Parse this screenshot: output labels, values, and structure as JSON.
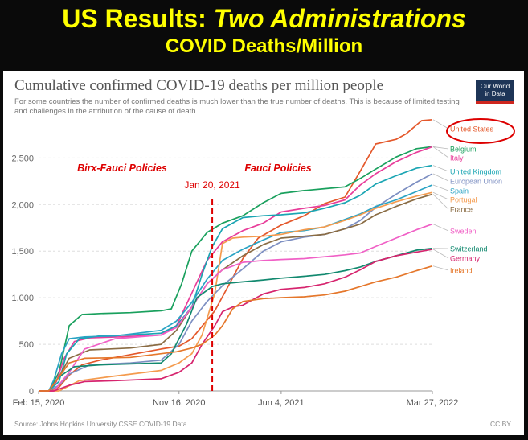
{
  "slide": {
    "title_prefix": "US Results: ",
    "title_emphasis": "Two Administrations",
    "subtitle": "COVID Deaths/Million"
  },
  "chart_header": {
    "title": "Cumulative confirmed COVID-19 deaths per million people",
    "subtitle": "For some countries the number of confirmed deaths is much lower than the true number of deaths. This is because of limited testing and challenges in the attribution of the cause of death.",
    "logo_line1": "Our World",
    "logo_line2": "in Data",
    "source": "Source: Johns Hopkins University CSSE COVID-19 Data",
    "license": "CC BY"
  },
  "annotations": {
    "left_policy": "Birx-Fauci Policies",
    "right_policy": "Fauci Policies",
    "divider_label": "Jan 20, 2021",
    "divider_color": "#dd0000"
  },
  "chart_data": {
    "type": "line",
    "x_tick_labels": [
      "Feb 15, 2020",
      "Nov 16, 2020",
      "Jun 4, 2021",
      "Mar 27, 2022"
    ],
    "x_ticks": [
      0,
      275,
      475,
      771
    ],
    "x_range": [
      0,
      771
    ],
    "ylim": [
      0,
      2900
    ],
    "y_ticks": [
      0,
      500,
      1000,
      1500,
      2000,
      2500
    ],
    "y_tick_labels": [
      "0",
      "500",
      "1,000",
      "1,500",
      "2,000",
      "2,500"
    ],
    "grid": "horizontal dashed",
    "divider_x": 340,
    "series": [
      {
        "name": "United States",
        "color": "#e4582b",
        "x": [
          0,
          20,
          40,
          60,
          85,
          120,
          180,
          240,
          275,
          300,
          330,
          345,
          370,
          400,
          430,
          475,
          520,
          560,
          600,
          630,
          660,
          700,
          720,
          750,
          771
        ],
        "values": [
          0,
          0,
          40,
          170,
          280,
          330,
          390,
          450,
          480,
          560,
          760,
          860,
          1110,
          1420,
          1640,
          1780,
          1880,
          2010,
          2080,
          2360,
          2650,
          2700,
          2760,
          2900,
          2910
        ]
      },
      {
        "name": "Belgium",
        "color": "#19a05d",
        "x": [
          0,
          20,
          40,
          60,
          85,
          120,
          180,
          240,
          260,
          280,
          300,
          330,
          360,
          400,
          440,
          475,
          520,
          560,
          600,
          630,
          660,
          700,
          740,
          771
        ],
        "values": [
          0,
          0,
          200,
          700,
          820,
          830,
          840,
          860,
          880,
          1150,
          1500,
          1700,
          1800,
          1880,
          2020,
          2120,
          2150,
          2170,
          2190,
          2280,
          2380,
          2510,
          2600,
          2620
        ]
      },
      {
        "name": "Italy",
        "color": "#e83d9a",
        "x": [
          0,
          20,
          35,
          50,
          70,
          100,
          160,
          240,
          270,
          300,
          330,
          360,
          400,
          440,
          475,
          520,
          560,
          600,
          630,
          660,
          700,
          740,
          771
        ],
        "values": [
          0,
          0,
          100,
          350,
          530,
          570,
          580,
          600,
          700,
          1050,
          1400,
          1600,
          1720,
          1800,
          1920,
          1960,
          1990,
          2050,
          2210,
          2330,
          2460,
          2560,
          2620
        ]
      },
      {
        "name": "United Kingdom",
        "color": "#1aa5b3",
        "x": [
          0,
          20,
          40,
          55,
          80,
          120,
          180,
          240,
          270,
          300,
          320,
          340,
          360,
          400,
          440,
          475,
          520,
          560,
          600,
          630,
          660,
          700,
          740,
          771
        ],
        "values": [
          0,
          0,
          100,
          400,
          560,
          590,
          600,
          620,
          700,
          900,
          1250,
          1550,
          1740,
          1860,
          1880,
          1890,
          1910,
          1960,
          2020,
          2100,
          2220,
          2310,
          2390,
          2420
        ]
      },
      {
        "name": "European Union",
        "color": "#7d8fc2",
        "x": [
          0,
          20,
          40,
          60,
          100,
          180,
          240,
          275,
          300,
          330,
          360,
          400,
          440,
          475,
          520,
          560,
          600,
          630,
          660,
          700,
          740,
          771
        ],
        "values": [
          0,
          0,
          60,
          180,
          280,
          300,
          330,
          500,
          750,
          960,
          1130,
          1310,
          1500,
          1600,
          1650,
          1680,
          1740,
          1830,
          1970,
          2110,
          2240,
          2330
        ]
      },
      {
        "name": "Spain",
        "color": "#29a3c4",
        "x": [
          0,
          20,
          30,
          45,
          60,
          90,
          150,
          240,
          270,
          300,
          330,
          360,
          400,
          440,
          475,
          520,
          560,
          600,
          630,
          660,
          700,
          740,
          771
        ],
        "values": [
          0,
          0,
          120,
          400,
          560,
          580,
          590,
          650,
          750,
          950,
          1200,
          1400,
          1520,
          1620,
          1700,
          1720,
          1760,
          1840,
          1900,
          1980,
          2050,
          2140,
          2210
        ]
      },
      {
        "name": "Portugal",
        "color": "#f49b4e",
        "x": [
          0,
          40,
          80,
          150,
          240,
          275,
          300,
          320,
          345,
          360,
          380,
          400,
          440,
          475,
          520,
          560,
          600,
          630,
          660,
          700,
          740,
          771
        ],
        "values": [
          0,
          0,
          110,
          160,
          220,
          300,
          400,
          600,
          1050,
          1580,
          1640,
          1650,
          1660,
          1680,
          1730,
          1760,
          1830,
          1890,
          1960,
          2030,
          2090,
          2130
        ]
      },
      {
        "name": "France",
        "color": "#8a6c44",
        "x": [
          0,
          20,
          40,
          60,
          100,
          180,
          240,
          270,
          300,
          330,
          360,
          400,
          440,
          475,
          520,
          560,
          600,
          630,
          660,
          700,
          740,
          771
        ],
        "values": [
          0,
          0,
          150,
          350,
          440,
          460,
          500,
          650,
          900,
          1150,
          1300,
          1450,
          1570,
          1640,
          1660,
          1680,
          1740,
          1790,
          1890,
          1980,
          2060,
          2110
        ]
      },
      {
        "name": "Sweden",
        "color": "#f060c6",
        "x": [
          0,
          30,
          60,
          90,
          150,
          240,
          270,
          300,
          330,
          360,
          400,
          440,
          475,
          520,
          560,
          600,
          630,
          660,
          700,
          740,
          771
        ],
        "values": [
          0,
          0,
          200,
          450,
          560,
          600,
          680,
          900,
          1150,
          1300,
          1380,
          1400,
          1410,
          1420,
          1440,
          1460,
          1480,
          1550,
          1640,
          1730,
          1790
        ]
      },
      {
        "name": "Switzerland",
        "color": "#12896f",
        "x": [
          0,
          20,
          40,
          70,
          120,
          240,
          260,
          290,
          310,
          340,
          360,
          400,
          440,
          475,
          520,
          560,
          600,
          630,
          660,
          700,
          740,
          771
        ],
        "values": [
          0,
          0,
          150,
          260,
          280,
          300,
          400,
          720,
          1000,
          1120,
          1150,
          1170,
          1190,
          1210,
          1230,
          1250,
          1290,
          1330,
          1390,
          1450,
          1510,
          1530
        ]
      },
      {
        "name": "Germany",
        "color": "#d6246e",
        "x": [
          0,
          30,
          60,
          90,
          150,
          240,
          275,
          300,
          320,
          345,
          360,
          380,
          400,
          440,
          475,
          520,
          560,
          600,
          630,
          660,
          700,
          740,
          771
        ],
        "values": [
          0,
          0,
          60,
          100,
          110,
          130,
          200,
          300,
          500,
          700,
          850,
          900,
          920,
          1040,
          1090,
          1110,
          1150,
          1220,
          1300,
          1390,
          1450,
          1490,
          1520
        ]
      },
      {
        "name": "Ireland",
        "color": "#e5772b",
        "x": [
          0,
          20,
          40,
          60,
          90,
          180,
          240,
          270,
          300,
          320,
          345,
          360,
          380,
          400,
          440,
          475,
          520,
          560,
          600,
          630,
          660,
          700,
          740,
          771
        ],
        "values": [
          0,
          0,
          150,
          300,
          350,
          360,
          400,
          420,
          460,
          500,
          600,
          700,
          880,
          960,
          990,
          1000,
          1010,
          1030,
          1070,
          1120,
          1170,
          1220,
          1290,
          1340
        ]
      }
    ]
  }
}
